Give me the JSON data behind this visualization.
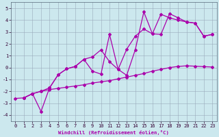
{
  "xlabel": "Windchill (Refroidissement éolien,°C)",
  "xlim": [
    -0.5,
    23.5
  ],
  "ylim": [
    -4.5,
    5.5
  ],
  "yticks": [
    -4,
    -3,
    -2,
    -1,
    0,
    1,
    2,
    3,
    4,
    5
  ],
  "xticks": [
    0,
    1,
    2,
    3,
    4,
    5,
    6,
    7,
    8,
    9,
    10,
    11,
    12,
    13,
    14,
    15,
    16,
    17,
    18,
    19,
    20,
    21,
    22,
    23
  ],
  "bg_color": "#cce8ee",
  "line_color": "#aa00aa",
  "grid_color": "#99aabb",
  "line1_x": [
    0,
    1,
    2,
    3,
    4,
    5,
    6,
    7,
    8,
    9,
    10,
    11,
    12,
    13,
    14,
    15,
    16,
    17,
    18,
    19,
    20,
    21,
    22,
    23
  ],
  "line1_y": [
    -2.6,
    -2.55,
    -2.2,
    -2.0,
    -1.85,
    -1.75,
    -1.65,
    -1.55,
    -1.45,
    -1.3,
    -1.2,
    -1.1,
    -0.95,
    -0.8,
    -0.65,
    -0.5,
    -0.3,
    -0.15,
    0.0,
    0.1,
    0.15,
    0.12,
    0.08,
    0.05
  ],
  "line2_x": [
    1,
    2,
    3,
    4,
    5,
    6,
    7,
    8,
    9,
    10,
    11,
    12,
    13,
    14,
    15,
    16,
    17,
    18,
    19,
    20,
    21,
    22,
    23
  ],
  "line2_y": [
    -2.55,
    -2.2,
    -3.7,
    -1.7,
    -0.6,
    -0.1,
    0.1,
    0.7,
    -0.3,
    -0.55,
    2.8,
    -0.15,
    -0.65,
    1.5,
    4.7,
    2.85,
    2.8,
    4.55,
    4.2,
    3.85,
    3.75,
    2.65,
    2.8
  ],
  "line3_x": [
    1,
    2,
    3,
    4,
    5,
    6,
    7,
    8,
    9,
    10,
    11,
    12,
    13,
    14,
    15,
    16,
    17,
    18,
    19,
    20,
    21,
    22,
    23
  ],
  "line3_y": [
    -2.55,
    -2.2,
    -2.0,
    -1.7,
    -0.6,
    -0.1,
    0.1,
    0.7,
    0.9,
    1.5,
    0.5,
    -0.15,
    1.55,
    2.65,
    3.25,
    2.85,
    4.5,
    4.2,
    4.0,
    3.85,
    3.75,
    2.65,
    2.8
  ]
}
